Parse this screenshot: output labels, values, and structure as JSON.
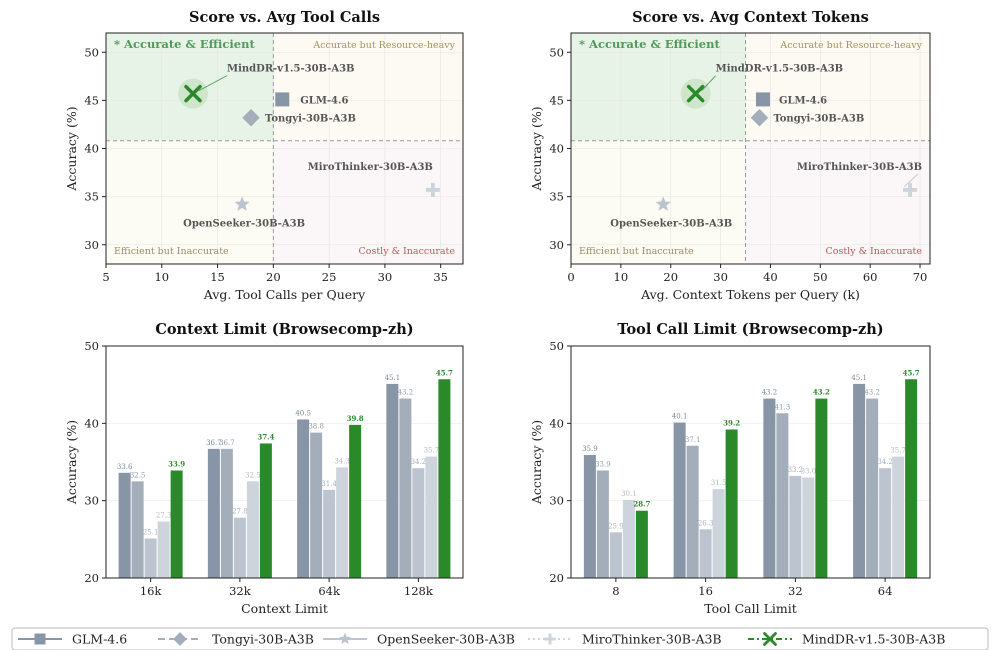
{
  "colors": {
    "GLM-4.6": "#8795a6",
    "Tongyi-30B-A3B": "#a3aeba",
    "OpenSeeker-30B-A3B": "#bcc5cf",
    "MiroThinker-30B-A3B": "#cdd4db",
    "MindDR-v1.5-30B-A3B": "#2a8a2a"
  },
  "legend": {
    "items": [
      "GLM-4.6",
      "Tongyi-30B-A3B",
      "OpenSeeker-30B-A3B",
      "MiroThinker-30B-A3B",
      "MindDR-v1.5-30B-A3B"
    ]
  },
  "chart_data": [
    {
      "type": "scatter",
      "title": "Score  vs.  Avg Tool Calls",
      "xlabel": "Avg. Tool Calls per Query",
      "ylabel": "Accuracy (%)",
      "xlim": [
        5,
        37
      ],
      "ylim": [
        28,
        52
      ],
      "xticks": [
        5,
        10,
        15,
        20,
        25,
        30,
        35
      ],
      "yticks": [
        30,
        35,
        40,
        45,
        50
      ],
      "divider_x": 20,
      "divider_y": 40.8,
      "quadrants": {
        "top_left": "* Accurate & Efficient",
        "top_right": "Accurate but Resource-heavy",
        "bottom_left": "Efficient but Inaccurate",
        "bottom_right": "Costly & Inaccurate"
      },
      "points": [
        {
          "name": "MindDR-v1.5-30B-A3B",
          "x": 12.8,
          "y": 45.7,
          "label": "MindDR-v1.5-30B-A3B"
        },
        {
          "name": "GLM-4.6",
          "x": 20.8,
          "y": 45.1,
          "label": "GLM-4.6"
        },
        {
          "name": "Tongyi-30B-A3B",
          "x": 18.0,
          "y": 43.2,
          "label": "Tongyi-30B-A3B"
        },
        {
          "name": "MiroThinker-30B-A3B",
          "x": 34.3,
          "y": 35.7,
          "label": "MiroThinker-30B-A3B"
        },
        {
          "name": "OpenSeeker-30B-A3B",
          "x": 17.2,
          "y": 34.2,
          "label": "OpenSeeker-30B-A3B"
        }
      ]
    },
    {
      "type": "scatter",
      "title": "Score  vs.  Avg Context Tokens",
      "xlabel": "Avg. Context Tokens per Query (k)",
      "ylabel": "Accuracy (%)",
      "xlim": [
        0,
        72
      ],
      "ylim": [
        28,
        52
      ],
      "xticks": [
        0,
        10,
        20,
        30,
        40,
        50,
        60,
        70
      ],
      "yticks": [
        30,
        35,
        40,
        45,
        50
      ],
      "divider_x": 35,
      "divider_y": 40.8,
      "quadrants": {
        "top_left": "* Accurate & Efficient",
        "top_right": "Accurate but Resource-heavy",
        "bottom_left": "Efficient but Inaccurate",
        "bottom_right": "Costly & Inaccurate"
      },
      "points": [
        {
          "name": "MindDR-v1.5-30B-A3B",
          "x": 25.0,
          "y": 45.7,
          "label": "MindDR-v1.5-30B-A3B"
        },
        {
          "name": "GLM-4.6",
          "x": 38.5,
          "y": 45.1,
          "label": "GLM-4.6"
        },
        {
          "name": "Tongyi-30B-A3B",
          "x": 37.8,
          "y": 43.2,
          "label": "Tongyi-30B-A3B"
        },
        {
          "name": "MiroThinker-30B-A3B",
          "x": 68.0,
          "y": 35.7,
          "label": "MiroThinker-30B-A3B"
        },
        {
          "name": "OpenSeeker-30B-A3B",
          "x": 18.5,
          "y": 34.2,
          "label": "OpenSeeker-30B-A3B"
        }
      ]
    },
    {
      "type": "bar",
      "title": "Context Limit  (Browsecomp-zh)",
      "xlabel": "Context Limit",
      "ylabel": "Accuracy (%)",
      "ylim": [
        20,
        50
      ],
      "yticks": [
        20,
        30,
        40,
        50
      ],
      "categories": [
        "16k",
        "32k",
        "64k",
        "128k"
      ],
      "series": [
        {
          "name": "GLM-4.6",
          "values": [
            33.6,
            36.7,
            40.5,
            45.1
          ],
          "labels": [
            "33.6",
            "36.7",
            "40.5",
            "45.1"
          ]
        },
        {
          "name": "Tongyi-30B-A3B",
          "values": [
            32.5,
            36.7,
            38.8,
            43.2
          ],
          "labels": [
            "32.5",
            "36.7",
            "38.8",
            "43.2"
          ]
        },
        {
          "name": "OpenSeeker-30B-A3B",
          "values": [
            25.1,
            27.8,
            31.4,
            34.2
          ],
          "labels": [
            "25.1",
            "27.8",
            "31.4",
            "34.2"
          ]
        },
        {
          "name": "MiroThinker-30B-A3B",
          "values": [
            27.3,
            32.5,
            34.3,
            35.7
          ],
          "labels": [
            "27.3",
            "32.5",
            "34.3",
            "35.7"
          ]
        },
        {
          "name": "MindDR-v1.5-30B-A3B",
          "values": [
            33.9,
            37.4,
            39.8,
            45.7
          ],
          "labels": [
            "33.9",
            "37.4",
            "39.8",
            "45.7"
          ]
        }
      ]
    },
    {
      "type": "bar",
      "title": "Tool Call Limit  (Browsecomp-zh)",
      "xlabel": "Tool Call Limit",
      "ylabel": "Accuracy (%)",
      "ylim": [
        20,
        50
      ],
      "yticks": [
        20,
        30,
        40,
        50
      ],
      "categories": [
        "8",
        "16",
        "32",
        "64"
      ],
      "series": [
        {
          "name": "GLM-4.6",
          "values": [
            35.9,
            40.1,
            43.2,
            45.1
          ],
          "labels": [
            "35.9",
            "40.1",
            "43.2",
            "45.1"
          ]
        },
        {
          "name": "Tongyi-30B-A3B",
          "values": [
            33.9,
            37.1,
            41.3,
            43.2
          ],
          "labels": [
            "33.9",
            "37.1",
            "41.3",
            "43.2"
          ]
        },
        {
          "name": "OpenSeeker-30B-A3B",
          "values": [
            25.9,
            26.3,
            33.2,
            34.2
          ],
          "labels": [
            "25.9",
            "26.3",
            "33.2",
            "34.2"
          ]
        },
        {
          "name": "MiroThinker-30B-A3B",
          "values": [
            30.1,
            31.5,
            33.0,
            35.7
          ],
          "labels": [
            "30.1",
            "31.5",
            "33.0",
            "35.7"
          ]
        },
        {
          "name": "MindDR-v1.5-30B-A3B",
          "values": [
            28.7,
            39.2,
            43.2,
            45.7
          ],
          "labels": [
            "28.7",
            "39.2",
            "43.2",
            "45.7"
          ]
        }
      ]
    }
  ]
}
